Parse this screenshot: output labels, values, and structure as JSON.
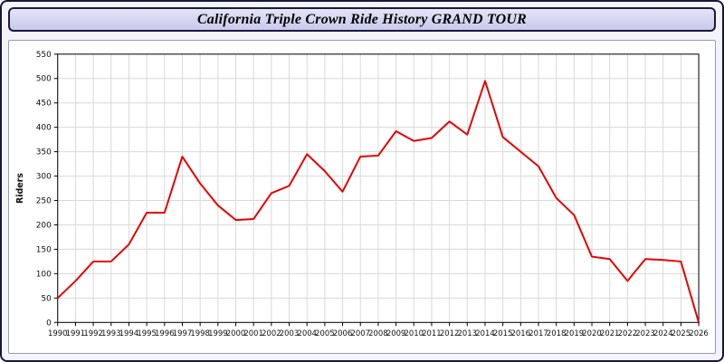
{
  "header": {
    "title": "California Triple Crown Ride History GRAND TOUR"
  },
  "chart_data": {
    "type": "line",
    "title": "California Triple Crown Ride History GRAND TOUR",
    "xlabel": "",
    "ylabel": "Riders",
    "ylim": [
      0,
      550
    ],
    "ytick_step": 50,
    "grid": true,
    "legend_position": "none",
    "line_color": "#e60000",
    "grid_color": "#d9d9d9",
    "axis_color": "#000000",
    "x": [
      1990,
      1991,
      1992,
      1993,
      1994,
      1995,
      1996,
      1997,
      1998,
      1999,
      2000,
      2001,
      2002,
      2003,
      2004,
      2005,
      2006,
      2007,
      2008,
      2009,
      2010,
      2011,
      2012,
      2013,
      2014,
      2015,
      2016,
      2017,
      2018,
      2019,
      2020,
      2021,
      2022,
      2023,
      2024,
      2025,
      2026
    ],
    "series": [
      {
        "name": "Riders",
        "values": [
          50,
          85,
          125,
          125,
          160,
          225,
          225,
          340,
          285,
          240,
          210,
          212,
          265,
          280,
          345,
          310,
          268,
          340,
          342,
          392,
          372,
          378,
          412,
          385,
          495,
          380,
          350,
          320,
          255,
          220,
          135,
          130,
          85,
          130,
          128,
          125,
          0
        ]
      }
    ]
  }
}
